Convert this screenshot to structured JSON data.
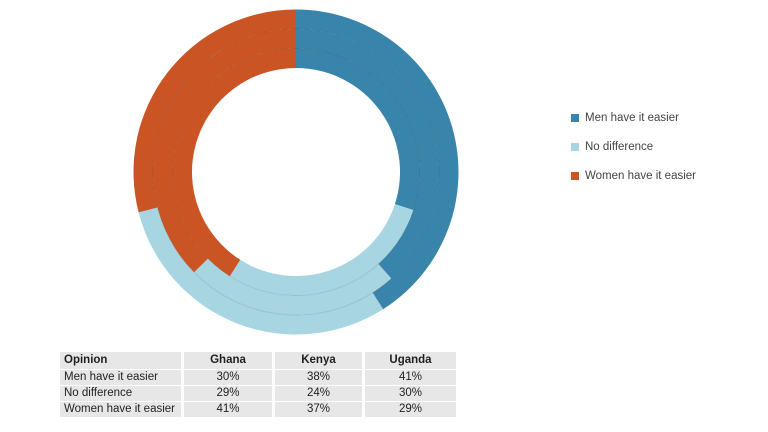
{
  "chart_data": {
    "type": "donut",
    "subtype": "multi-ring-doughnut",
    "unit": "%",
    "categories": [
      "Men have it easier",
      "No difference",
      "Women have it easier"
    ],
    "colors": [
      "#3884ab",
      "#a7d5e2",
      "#cb5425"
    ],
    "series": [
      {
        "name": "Ghana",
        "ring": "inner",
        "values": [
          30,
          29,
          41
        ]
      },
      {
        "name": "Kenya",
        "ring": "middle",
        "values": [
          38,
          24,
          37
        ]
      },
      {
        "name": "Uganda",
        "ring": "outer",
        "values": [
          41,
          30,
          29
        ]
      }
    ],
    "start_angle_deg": 0,
    "direction": "clockwise",
    "legend_position": "right",
    "background": "#ffffff"
  },
  "legend": {
    "items": [
      "Men have it easier",
      "No difference",
      "Women have it easier"
    ]
  },
  "table": {
    "headers": [
      "Opinion",
      "Ghana",
      "Kenya",
      "Uganda"
    ],
    "rows": [
      [
        "Men have it easier",
        "30%",
        "38%",
        "41%"
      ],
      [
        "No difference",
        "29%",
        "24%",
        "30%"
      ],
      [
        "Women have it easier",
        "41%",
        "37%",
        "29%"
      ]
    ],
    "cell_background": "#e7e7e7",
    "text_color": "#1f1f1f"
  }
}
